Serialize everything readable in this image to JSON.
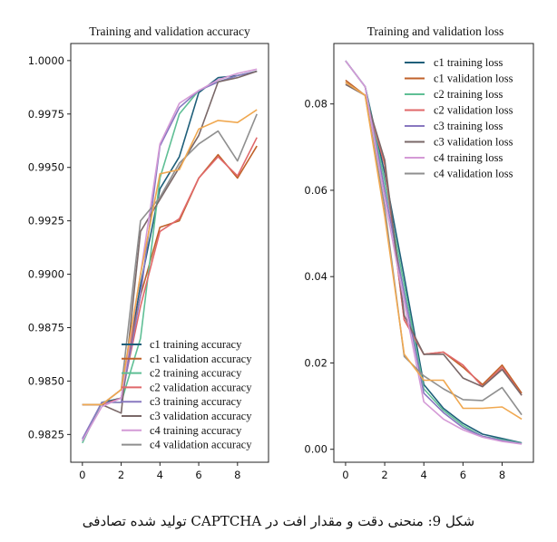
{
  "chart_data": [
    {
      "type": "line",
      "title": "Training and validation accuracy",
      "xlim": [
        -0.6,
        9.6
      ],
      "ylim": [
        0.9812,
        1.0008
      ],
      "xticks": [
        0,
        2,
        4,
        6,
        8
      ],
      "xtick_labels": [
        "0",
        "2",
        "4",
        "6",
        "8"
      ],
      "yticks": [
        0.9825,
        0.985,
        0.9875,
        0.99,
        0.9925,
        0.995,
        0.9975,
        1.0
      ],
      "ytick_labels": [
        "0.9825",
        "0.9850",
        "0.9875",
        "0.9900",
        "0.9925",
        "0.9950",
        "0.9975",
        "1.0000"
      ],
      "legend_position": "bottom-right",
      "grid": false,
      "series": [
        {
          "name": "c1 training accuracy",
          "color": "#1f5f7a",
          "x": [
            0,
            1,
            2,
            3,
            4,
            5,
            6,
            7,
            8,
            9
          ],
          "y": [
            0.9822,
            0.984,
            0.9842,
            0.9895,
            0.994,
            0.9955,
            0.9985,
            0.9992,
            0.9993,
            0.9995
          ]
        },
        {
          "name": "c1 validation accuracy",
          "color": "#c0622a",
          "x": [
            0,
            1,
            2,
            3,
            4,
            5,
            6,
            7,
            8,
            9
          ],
          "y": [
            0.9839,
            0.9839,
            0.9846,
            0.989,
            0.9922,
            0.9925,
            0.9945,
            0.9956,
            0.9945,
            0.996
          ]
        },
        {
          "name": "c2 training accuracy",
          "color": "#5fbf95",
          "x": [
            0,
            1,
            2,
            3,
            4,
            5,
            6,
            7,
            8,
            9
          ],
          "y": [
            0.9821,
            0.984,
            0.984,
            0.987,
            0.9945,
            0.9975,
            0.9986,
            0.999,
            0.9993,
            0.9995
          ]
        },
        {
          "name": "c2 validation accuracy",
          "color": "#e0686a",
          "x": [
            0,
            1,
            2,
            3,
            4,
            5,
            6,
            7,
            8,
            9
          ],
          "y": [
            0.9839,
            0.9839,
            0.9842,
            0.9885,
            0.992,
            0.9926,
            0.9945,
            0.9955,
            0.9946,
            0.9964
          ]
        },
        {
          "name": "c3 training accuracy",
          "color": "#8878c0",
          "x": [
            0,
            1,
            2,
            3,
            4,
            5,
            6,
            7,
            8,
            9
          ],
          "y": [
            0.9823,
            0.984,
            0.984,
            0.989,
            0.996,
            0.9978,
            0.9986,
            0.999,
            0.9993,
            0.9995
          ]
        },
        {
          "name": "c3 validation accuracy",
          "color": "#7a6868",
          "x": [
            0,
            1,
            2,
            3,
            4,
            5,
            6,
            7,
            8,
            9
          ],
          "y": [
            0.9839,
            0.9839,
            0.9835,
            0.992,
            0.9935,
            0.995,
            0.9965,
            0.999,
            0.9992,
            0.9995
          ]
        },
        {
          "name": "c4 training accuracy",
          "color": "#d49ad6",
          "x": [
            0,
            1,
            2,
            3,
            4,
            5,
            6,
            7,
            8,
            9
          ],
          "y": [
            0.9822,
            0.9838,
            0.9842,
            0.99,
            0.9961,
            0.998,
            0.9986,
            0.9991,
            0.9994,
            0.9996
          ]
        },
        {
          "name": "c4 validation accuracy",
          "color": "#8f8f8f",
          "x": [
            0,
            1,
            2,
            3,
            4,
            5,
            6,
            7,
            8,
            9
          ],
          "y": [
            0.9839,
            0.9839,
            0.9846,
            0.9925,
            0.9936,
            0.9952,
            0.9961,
            0.9967,
            0.9953,
            0.9975
          ]
        },
        {
          "name": "",
          "color": "#f0a850",
          "x": [
            0,
            1,
            2,
            3,
            4,
            5,
            6,
            7,
            8,
            9
          ],
          "y": [
            0.9839,
            0.9839,
            0.9846,
            0.99,
            0.9947,
            0.9949,
            0.9968,
            0.9972,
            0.9971,
            0.9977
          ]
        }
      ]
    },
    {
      "type": "line",
      "title": "Training and validation loss",
      "xlim": [
        -0.6,
        9.6
      ],
      "ylim": [
        -0.003,
        0.094
      ],
      "xticks": [
        0,
        2,
        4,
        6,
        8
      ],
      "xtick_labels": [
        "0",
        "2",
        "4",
        "6",
        "8"
      ],
      "yticks": [
        0.0,
        0.02,
        0.04,
        0.06,
        0.08
      ],
      "ytick_labels": [
        "0.00",
        "0.02",
        "0.04",
        "0.06",
        "0.08"
      ],
      "legend_position": "top-right",
      "grid": false,
      "series": [
        {
          "name": "c1 training loss",
          "color": "#1f5f7a",
          "x": [
            0,
            1,
            2,
            3,
            4,
            5,
            6,
            7,
            8,
            9
          ],
          "y": [
            0.09,
            0.084,
            0.064,
            0.04,
            0.015,
            0.0095,
            0.006,
            0.0035,
            0.0025,
            0.0015
          ]
        },
        {
          "name": "c1 validation loss",
          "color": "#c0622a",
          "x": [
            0,
            1,
            2,
            3,
            4,
            5,
            6,
            7,
            8,
            9
          ],
          "y": [
            0.0855,
            0.082,
            0.066,
            0.03,
            0.022,
            0.0225,
            0.019,
            0.015,
            0.0195,
            0.013
          ]
        },
        {
          "name": "c2 training loss",
          "color": "#5fbf95",
          "x": [
            0,
            1,
            2,
            3,
            4,
            5,
            6,
            7,
            8,
            9
          ],
          "y": [
            0.09,
            0.084,
            0.062,
            0.038,
            0.014,
            0.009,
            0.0055,
            0.003,
            0.0022,
            0.0014
          ]
        },
        {
          "name": "c2 validation loss",
          "color": "#e0686a",
          "x": [
            0,
            1,
            2,
            3,
            4,
            5,
            6,
            7,
            8,
            9
          ],
          "y": [
            0.085,
            0.082,
            0.066,
            0.03,
            0.022,
            0.0225,
            0.0195,
            0.0145,
            0.019,
            0.0125
          ]
        },
        {
          "name": "c3 training loss",
          "color": "#8878c0",
          "x": [
            0,
            1,
            2,
            3,
            4,
            5,
            6,
            7,
            8,
            9
          ],
          "y": [
            0.09,
            0.084,
            0.06,
            0.036,
            0.013,
            0.0085,
            0.005,
            0.003,
            0.002,
            0.0013
          ]
        },
        {
          "name": "c3 validation loss",
          "color": "#7a6868",
          "x": [
            0,
            1,
            2,
            3,
            4,
            5,
            6,
            7,
            8,
            9
          ],
          "y": [
            0.0845,
            0.082,
            0.067,
            0.031,
            0.022,
            0.022,
            0.0165,
            0.0145,
            0.0185,
            0.0125
          ]
        },
        {
          "name": "c4 training loss",
          "color": "#d49ad6",
          "x": [
            0,
            1,
            2,
            3,
            4,
            5,
            6,
            7,
            8,
            9
          ],
          "y": [
            0.09,
            0.084,
            0.058,
            0.034,
            0.011,
            0.007,
            0.0045,
            0.0028,
            0.0018,
            0.0012
          ]
        },
        {
          "name": "c4 validation loss",
          "color": "#8f8f8f",
          "x": [
            0,
            1,
            2,
            3,
            4,
            5,
            6,
            7,
            8,
            9
          ],
          "y": [
            0.085,
            0.082,
            0.056,
            0.0215,
            0.017,
            0.014,
            0.0115,
            0.0113,
            0.0143,
            0.008
          ]
        },
        {
          "name": "",
          "color": "#f0a850",
          "x": [
            0,
            1,
            2,
            3,
            4,
            5,
            6,
            7,
            8,
            9
          ],
          "y": [
            0.085,
            0.082,
            0.054,
            0.022,
            0.016,
            0.016,
            0.0095,
            0.0095,
            0.0098,
            0.007
          ]
        }
      ]
    }
  ],
  "caption": "شکل 9: منحنی دقت و مقدار افت در CAPTCHA تولید شده تصادفی"
}
